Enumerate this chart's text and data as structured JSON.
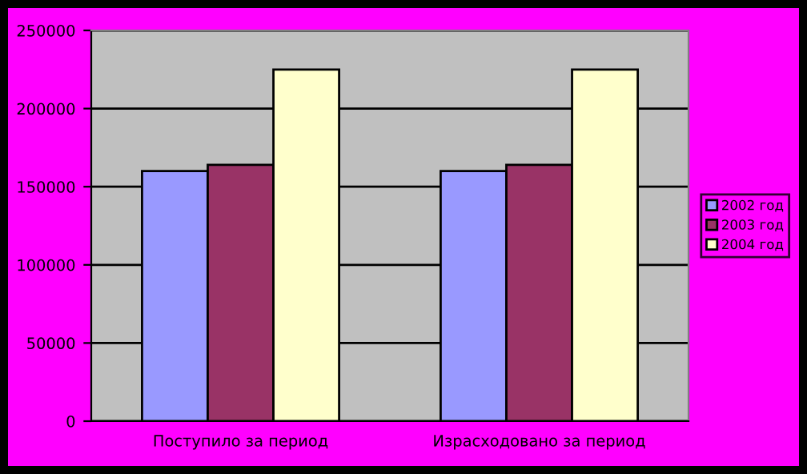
{
  "chart_data": {
    "type": "bar",
    "categories": [
      "Поступило за период",
      "Израсходовано за период"
    ],
    "series": [
      {
        "name": "2002 год",
        "color": "#9999ff",
        "values": [
          160000,
          160000
        ]
      },
      {
        "name": "2003 год",
        "color": "#993366",
        "values": [
          164000,
          164000
        ]
      },
      {
        "name": "2004 год",
        "color": "#ffffcc",
        "values": [
          225000,
          225000
        ]
      }
    ],
    "ylim": [
      0,
      250000
    ],
    "yticks": [
      0,
      50000,
      100000,
      150000,
      200000,
      250000
    ],
    "grid": "y",
    "legend": "right"
  }
}
